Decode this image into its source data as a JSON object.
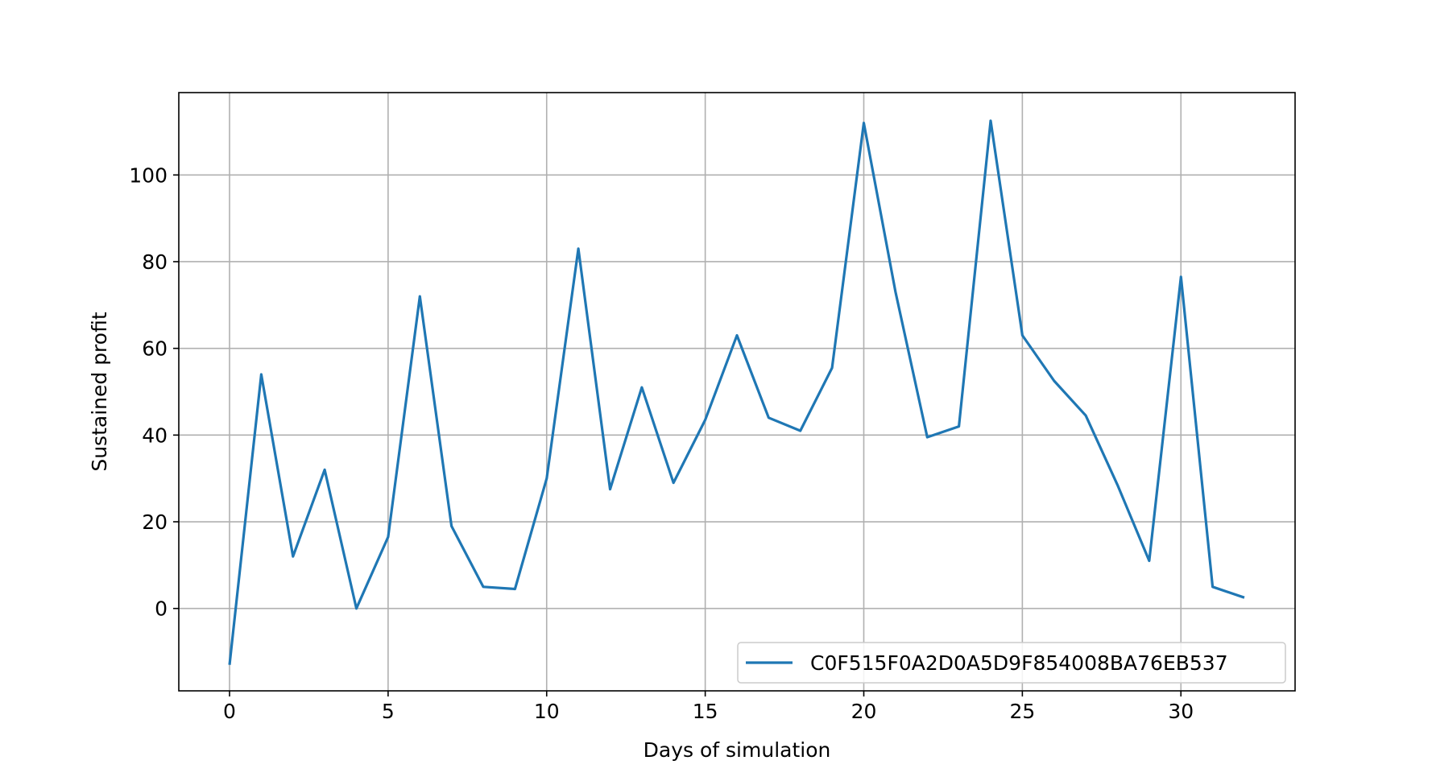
{
  "chart_data": {
    "type": "line",
    "title": "",
    "xlabel": "Days of simulation",
    "ylabel": "Sustained profit",
    "xlim": [
      -1.6,
      33.6
    ],
    "ylim": [
      -19,
      119
    ],
    "xticks": [
      0,
      5,
      10,
      15,
      20,
      25,
      30
    ],
    "yticks": [
      0,
      20,
      40,
      60,
      80,
      100
    ],
    "grid": true,
    "legend_position": "lower-right",
    "series": [
      {
        "name": "C0F515F0A2D0A5D9F854008BA76EB537",
        "color": "#1f77b4",
        "x": [
          0,
          1,
          2,
          3,
          4,
          5,
          6,
          7,
          8,
          9,
          10,
          11,
          12,
          13,
          14,
          15,
          16,
          17,
          18,
          19,
          20,
          21,
          22,
          23,
          24,
          25,
          26,
          27,
          28,
          29,
          30,
          31,
          32
        ],
        "y": [
          -13,
          54,
          12,
          32,
          0,
          16.5,
          72,
          19,
          5,
          4.5,
          30,
          83,
          27.5,
          51,
          29,
          43.5,
          63,
          44,
          41,
          55.5,
          112,
          73,
          39.5,
          42,
          112.5,
          63,
          52.5,
          44.5,
          28.5,
          11,
          76.5,
          5,
          2.5
        ]
      }
    ]
  }
}
